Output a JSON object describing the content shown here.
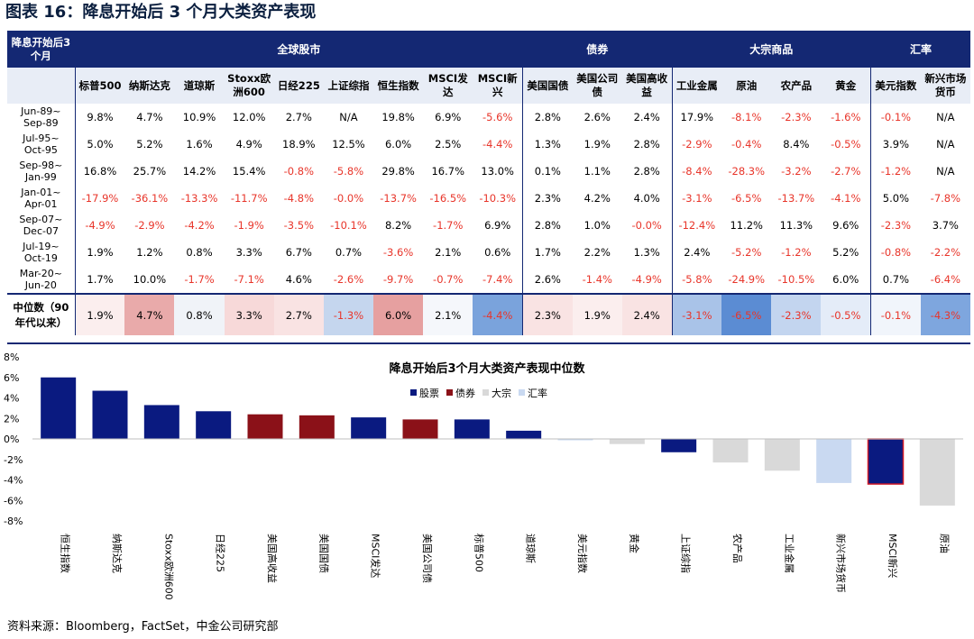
{
  "title": "图表 16：降息开始后 3 个月大类资产表现",
  "table": {
    "corner_label": "降息开始后3个月",
    "groups": [
      {
        "label": "全球股市",
        "span": 9
      },
      {
        "label": "债券",
        "span": 3
      },
      {
        "label": "大宗商品",
        "span": 4
      },
      {
        "label": "汇率",
        "span": 2
      }
    ],
    "columns": [
      "标普500",
      "纳斯达克",
      "道琼斯",
      "Stoxx欧洲600",
      "日经225",
      "上证综指",
      "恒生指数",
      "MSCI发达",
      "MSCI新兴",
      "美国国债",
      "美国公司债",
      "美国高收益",
      "工业金属",
      "原油",
      "农产品",
      "黄金",
      "美元指数",
      "新兴市场货币"
    ],
    "rows": [
      {
        "period_start": "Jun-89~",
        "period_end": "Sep-89",
        "values": [
          "9.8%",
          "4.7%",
          "10.9%",
          "12.0%",
          "2.7%",
          "N/A",
          "19.8%",
          "6.9%",
          "-5.6%",
          "2.8%",
          "2.6%",
          "2.4%",
          "17.9%",
          "-8.1%",
          "-2.3%",
          "-1.6%",
          "-0.1%",
          "N/A"
        ]
      },
      {
        "period_start": "Jul-95~",
        "period_end": "Oct-95",
        "values": [
          "5.0%",
          "5.2%",
          "1.6%",
          "4.9%",
          "18.9%",
          "12.5%",
          "6.0%",
          "2.5%",
          "-4.4%",
          "1.3%",
          "1.9%",
          "2.8%",
          "-2.9%",
          "-0.4%",
          "8.4%",
          "-0.5%",
          "3.9%",
          "N/A"
        ]
      },
      {
        "period_start": "Sep-98~",
        "period_end": "Jan-99",
        "values": [
          "16.8%",
          "25.7%",
          "14.2%",
          "15.4%",
          "-0.8%",
          "-5.8%",
          "29.8%",
          "16.7%",
          "13.0%",
          "0.1%",
          "1.1%",
          "2.8%",
          "-8.4%",
          "-28.3%",
          "-3.2%",
          "-2.7%",
          "-1.2%",
          "N/A"
        ]
      },
      {
        "period_start": "Jan-01~",
        "period_end": "Apr-01",
        "values": [
          "-17.9%",
          "-36.1%",
          "-13.3%",
          "-11.7%",
          "-4.8%",
          "-0.0%",
          "-13.7%",
          "-16.5%",
          "-10.3%",
          "2.3%",
          "4.2%",
          "4.0%",
          "-3.1%",
          "-6.5%",
          "-13.7%",
          "-4.1%",
          "5.0%",
          "-7.8%"
        ]
      },
      {
        "period_start": "Sep-07~",
        "period_end": "Dec-07",
        "values": [
          "-4.9%",
          "-2.9%",
          "-4.2%",
          "-1.9%",
          "-3.5%",
          "-10.1%",
          "8.2%",
          "-1.7%",
          "6.9%",
          "2.8%",
          "1.0%",
          "-0.0%",
          "-12.4%",
          "11.2%",
          "11.3%",
          "9.6%",
          "-2.3%",
          "3.7%"
        ]
      },
      {
        "period_start": "Jul-19~",
        "period_end": "Oct-19",
        "values": [
          "1.9%",
          "1.2%",
          "0.8%",
          "3.3%",
          "6.7%",
          "0.7%",
          "-3.6%",
          "2.1%",
          "0.6%",
          "1.7%",
          "2.2%",
          "1.3%",
          "2.4%",
          "-5.2%",
          "-1.2%",
          "5.2%",
          "-0.8%",
          "-2.2%"
        ]
      },
      {
        "period_start": "Mar-20~",
        "period_end": "Jun-20",
        "values": [
          "1.7%",
          "10.0%",
          "-1.7%",
          "-7.1%",
          "4.6%",
          "-2.6%",
          "-9.7%",
          "-0.7%",
          "-7.4%",
          "2.6%",
          "-1.4%",
          "-4.9%",
          "-5.8%",
          "-24.9%",
          "-10.5%",
          "6.0%",
          "0.7%",
          "-6.4%"
        ]
      }
    ],
    "median": {
      "label_line1": "中位数（90",
      "label_line2": "年代以来）",
      "values": [
        "1.9%",
        "4.7%",
        "0.8%",
        "3.3%",
        "2.7%",
        "-1.3%",
        "6.0%",
        "2.1%",
        "-4.4%",
        "2.3%",
        "1.9%",
        "2.4%",
        "-3.1%",
        "-6.5%",
        "-2.3%",
        "-0.5%",
        "-0.1%",
        "-4.3%"
      ],
      "cell_colors": [
        "#fbeeee",
        "#e9aaaa",
        "#f0f3f8",
        "#f7d9d9",
        "#f9e3e3",
        "#c5d6ee",
        "#e6a0a0",
        "#f5f7fb",
        "#7aa3dc",
        "#f9e3e3",
        "#fbeeee",
        "#f9e3e3",
        "#a9c3e8",
        "#5b8cd3",
        "#c3d5ef",
        "#e4ecf8",
        "#f1f5fb",
        "#7ea6de"
      ]
    }
  },
  "chart_data": {
    "type": "bar",
    "title": "降息开始后3个月大类资产表现中位数",
    "categories": [
      "恒生指数",
      "纳斯达克",
      "Stoxx欧洲600",
      "日经225",
      "美国高收益",
      "美国国债",
      "MSCI发达",
      "美国公司债",
      "标普500",
      "道琼斯",
      "美元指数",
      "黄金",
      "上证综指",
      "农产品",
      "工业金属",
      "新兴市场货币",
      "MSCI新兴",
      "原油"
    ],
    "values": [
      6.0,
      4.7,
      3.3,
      2.7,
      2.4,
      2.3,
      2.1,
      1.9,
      1.9,
      0.8,
      -0.1,
      -0.5,
      -1.3,
      -2.3,
      -3.1,
      -4.3,
      -4.4,
      -6.5
    ],
    "groups": [
      "股票",
      "股票",
      "股票",
      "股票",
      "债券",
      "债券",
      "股票",
      "债券",
      "股票",
      "股票",
      "汇率",
      "大宗",
      "股票",
      "大宗",
      "大宗",
      "汇率",
      "股票",
      "大宗"
    ],
    "legend": [
      {
        "name": "股票",
        "color": "#0a1a80"
      },
      {
        "name": "债券",
        "color": "#8b1118"
      },
      {
        "name": "大宗",
        "color": "#d9d9d9"
      },
      {
        "name": "汇率",
        "color": "#c9d9f1"
      }
    ],
    "highlight_outline_color": "#d01826",
    "y_ticks": [
      8,
      6,
      4,
      2,
      0,
      -2,
      -4,
      -6,
      -8
    ],
    "y_tick_labels": [
      "8%",
      "6%",
      "4%",
      "2%",
      "0%",
      "-2%",
      "-4%",
      "-6%",
      "-8%"
    ],
    "ylim": [
      -8,
      8
    ],
    "legend_position": "top-right"
  },
  "source": "资料来源：Bloomberg，FactSet，中金公司研究部"
}
